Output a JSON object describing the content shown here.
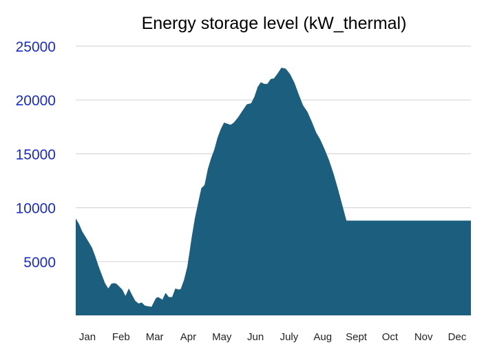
{
  "chart_data": {
    "type": "area",
    "title": "Energy storage level (kW_thermal)",
    "xlabel": "",
    "ylabel": "",
    "ylim": [
      0,
      25000
    ],
    "yticks": [
      5000,
      10000,
      15000,
      20000,
      25000
    ],
    "ytick_labels": [
      "5000",
      "10000",
      "15000",
      "20000",
      "25000"
    ],
    "xticks": [
      "Jan",
      "Feb",
      "Mar",
      "Apr",
      "May",
      "Jun",
      "July",
      "Aug",
      "Sept",
      "Oct",
      "Nov",
      "Dec"
    ],
    "xlim_day": [
      0,
      365
    ],
    "grid": true,
    "legend": "none",
    "colors": {
      "fill": "#1b5e7e",
      "ytick_text": "#1a2cc4",
      "title": "#000000"
    },
    "series": [
      {
        "x_day": [
          0,
          3,
          6,
          9,
          12,
          15,
          18,
          21,
          24,
          27,
          30,
          33,
          36,
          38,
          40,
          43,
          46,
          49,
          52,
          55,
          58,
          61,
          64,
          67,
          70,
          72,
          74,
          76,
          78,
          80,
          83,
          86,
          89,
          92,
          95,
          97,
          100,
          103,
          105,
          107,
          110,
          113,
          116,
          119,
          122,
          125,
          128,
          131,
          134,
          137,
          140,
          143,
          146,
          150,
          154,
          158,
          162,
          165,
          168,
          171,
          174,
          177,
          180,
          183,
          186,
          190,
          194,
          198,
          202,
          206,
          210,
          214,
          218,
          222,
          226,
          230,
          234,
          238,
          242,
          246,
          250,
          254,
          258,
          262,
          266,
          270,
          273,
          276,
          280,
          284,
          288,
          292,
          296,
          300,
          305,
          310,
          315,
          320,
          325,
          330,
          335,
          340,
          345,
          350,
          355,
          360,
          365
        ],
        "values": [
          9000,
          8500,
          7800,
          7300,
          6800,
          6300,
          5500,
          4600,
          3800,
          3000,
          2500,
          2950,
          3000,
          2900,
          2700,
          2400,
          1800,
          2500,
          1900,
          1350,
          1100,
          1200,
          900,
          850,
          800,
          1200,
          1600,
          1700,
          1600,
          1450,
          2100,
          1700,
          1700,
          2500,
          2400,
          2450,
          3300,
          4500,
          5800,
          7200,
          9000,
          10400,
          11800,
          12100,
          13600,
          14600,
          15400,
          16500,
          17300,
          17900,
          17800,
          17700,
          17900,
          18400,
          19000,
          19600,
          19700,
          20300,
          21200,
          21650,
          21500,
          21500,
          21950,
          22000,
          22400,
          23000,
          22900,
          22400,
          21600,
          20500,
          19500,
          18900,
          18000,
          17000,
          16300,
          15400,
          14400,
          13200,
          11800,
          10300,
          8800,
          8800,
          8800,
          8800,
          8800,
          8800,
          8800,
          8800,
          8800,
          8800,
          8800,
          8800,
          8800,
          8800,
          8800,
          8800,
          8800,
          8800,
          8800,
          8800,
          8800,
          8800,
          8800,
          8800,
          8800,
          8800,
          8800
        ]
      }
    ]
  }
}
